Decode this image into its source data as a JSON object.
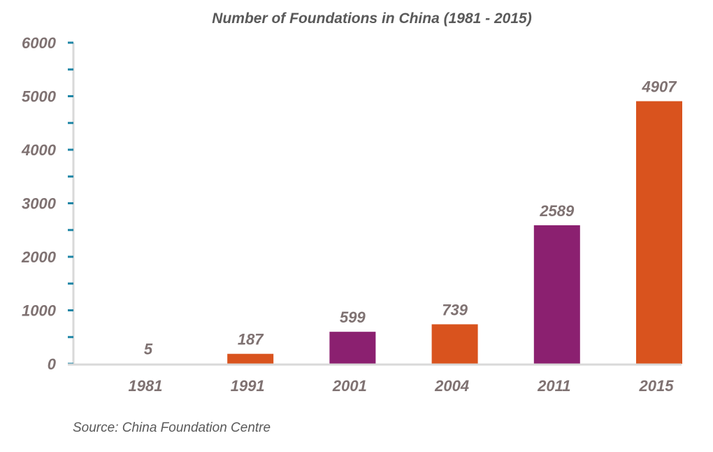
{
  "chart_data": {
    "type": "bar",
    "title": "Number of Foundations in China (1981 - 2015)",
    "categories": [
      "1981",
      "1991",
      "2001",
      "2004",
      "2011",
      "2015"
    ],
    "values": [
      5,
      187,
      599,
      739,
      2589,
      4907
    ],
    "value_labels": [
      "5",
      "187",
      "599",
      "739",
      "2589",
      "4907"
    ],
    "ylim": [
      0,
      6000
    ],
    "yticks": [
      "0",
      "1000",
      "2000",
      "3000",
      "4000",
      "5000",
      "6000"
    ],
    "ytick_values": [
      0,
      1000,
      2000,
      3000,
      4000,
      5000,
      6000
    ],
    "grid": false,
    "legend": "none",
    "colors": {
      "orange": "#d9531e",
      "purple": "#8b2070",
      "axis": "#d9d9d9",
      "tick_mark": "#1f86a6"
    },
    "bar_colors": [
      "orange",
      "orange",
      "purple",
      "orange",
      "purple",
      "orange"
    ]
  },
  "source": "Source: China Foundation Centre"
}
